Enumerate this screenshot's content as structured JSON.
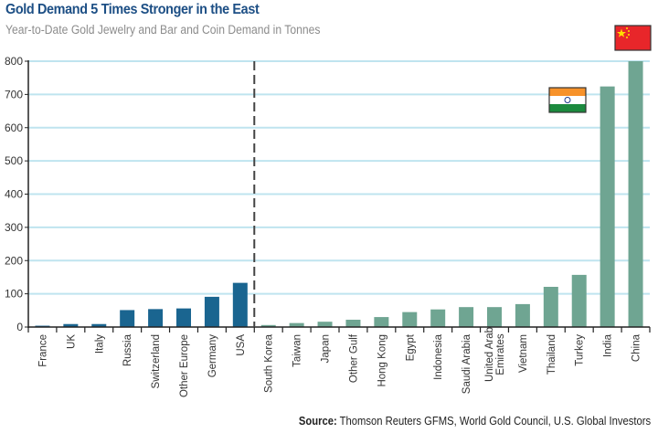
{
  "header": {
    "title": "Gold Demand 5 Times Stronger in the East",
    "subtitle": "Year-to-Date Gold Jewelry and Bar and Coin Demand in Tonnes"
  },
  "footer": {
    "source_label": "Source:",
    "source_text": " Thomson Reuters GFMS, World Gold Council, U.S. Global Investors"
  },
  "chart_data": {
    "type": "bar",
    "title": "Gold Demand 5 Times Stronger in the East",
    "subtitle": "Year-to-Date Gold Jewelry and Bar and Coin Demand in Tonnes",
    "xlabel": "",
    "ylabel": "",
    "ylim": [
      0,
      800
    ],
    "yticks": [
      0,
      100,
      200,
      300,
      400,
      500,
      600,
      700,
      800
    ],
    "grid": true,
    "legend": "none",
    "divider_after_category": "USA",
    "colors": {
      "west": "#1a6590",
      "east": "#6fa592",
      "grid": "#bfe4ef",
      "flag_china": "#e8262a",
      "flag_india_saffron": "#f7922a",
      "flag_india_green": "#1b8a3e"
    },
    "categories": [
      "France",
      "UK",
      "Italy",
      "Russia",
      "Switzerland",
      "Other Europe",
      "Germany",
      "USA",
      "South Korea",
      "Taiwan",
      "Japan",
      "Other Gulf",
      "Hong Kong",
      "Egypt",
      "Indonesia",
      "Saudi Arabia",
      "United Arab Emirates",
      "Vietnam",
      "Thailand",
      "Turkey",
      "India",
      "China"
    ],
    "label_lines": [
      [
        "France"
      ],
      [
        "UK"
      ],
      [
        "Italy"
      ],
      [
        "Russia"
      ],
      [
        "Switzerland"
      ],
      [
        "Other Europe"
      ],
      [
        "Germany"
      ],
      [
        "USA"
      ],
      [
        "South Korea"
      ],
      [
        "Taiwan"
      ],
      [
        "Japan"
      ],
      [
        "Other Gulf"
      ],
      [
        "Hong Kong"
      ],
      [
        "Egypt"
      ],
      [
        "Indonesia"
      ],
      [
        "Saudi Arabia"
      ],
      [
        "United Arab",
        "Emirates"
      ],
      [
        "Vietnam"
      ],
      [
        "Thailand"
      ],
      [
        "Turkey"
      ],
      [
        "India"
      ],
      [
        "China"
      ]
    ],
    "groups": [
      "West",
      "West",
      "West",
      "West",
      "West",
      "West",
      "West",
      "West",
      "East",
      "East",
      "East",
      "East",
      "East",
      "East",
      "East",
      "East",
      "East",
      "East",
      "East",
      "East",
      "East",
      "East"
    ],
    "values": [
      4,
      9,
      9,
      51,
      54,
      56,
      91,
      133,
      6,
      12,
      16,
      22,
      30,
      45,
      53,
      60,
      60,
      69,
      121,
      157,
      724,
      800
    ],
    "annotations": [
      {
        "type": "flag",
        "country": "India",
        "category": "India"
      },
      {
        "type": "flag",
        "country": "China",
        "category": "China"
      }
    ]
  }
}
